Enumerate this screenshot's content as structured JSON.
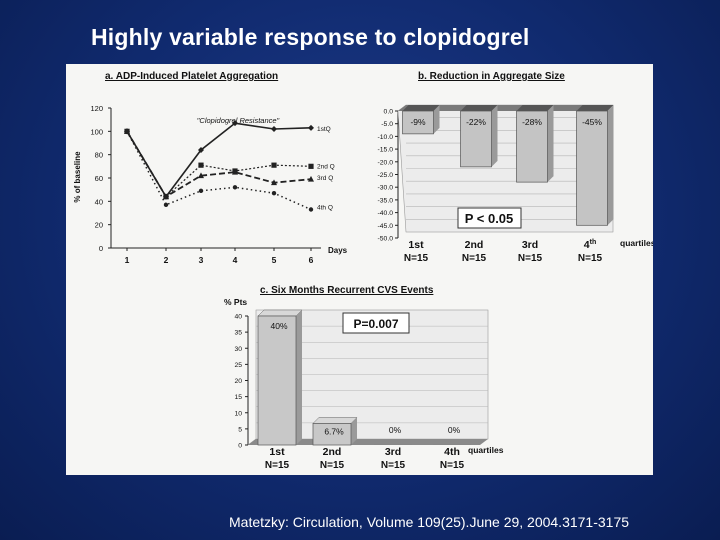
{
  "slide": {
    "title": "Highly variable response to clopidogrel",
    "citation": "Matetzky: Circulation, Volume 109(25).June 29, 2004.3171-3175"
  },
  "chart_data": [
    {
      "id": "a",
      "type": "line",
      "title": "a. ADP-Induced Platelet Aggregation",
      "ylabel": "% of baseline",
      "xlabel": "Days",
      "x": [
        1,
        2,
        3,
        4,
        5,
        6
      ],
      "xticks": [
        "1",
        "2",
        "3",
        "4",
        "5",
        "6"
      ],
      "ylim": [
        0,
        120
      ],
      "yticks": [
        0,
        20,
        40,
        60,
        80,
        100,
        120
      ],
      "annotation": "\"Clopidogrel Resistance\"",
      "series": [
        {
          "name": "1stQ",
          "values": [
            100,
            44,
            84,
            107,
            102,
            103
          ],
          "marker": "diamond"
        },
        {
          "name": "2nd Q",
          "values": [
            100,
            44,
            71,
            66,
            71,
            70
          ],
          "marker": "square"
        },
        {
          "name": "3rd Q",
          "values": [
            100,
            44,
            62,
            65,
            56,
            59
          ],
          "marker": "triangle"
        },
        {
          "name": "4th Q",
          "values": [
            100,
            37,
            49,
            52,
            47,
            33
          ],
          "marker": "circle"
        }
      ]
    },
    {
      "id": "b",
      "type": "bar",
      "title": "b. Reduction in Aggregate Size",
      "categories": [
        "1st",
        "2nd",
        "3rd",
        "4th"
      ],
      "sublabels": [
        "N=15",
        "N=15",
        "N=15",
        "N=15"
      ],
      "values": [
        -9,
        -22,
        -28,
        -45
      ],
      "labels": [
        "-9%",
        "-22%",
        "-28%",
        "-45%"
      ],
      "ylim": [
        -50,
        0
      ],
      "yticks": [
        0,
        -5,
        -10,
        -15,
        -20,
        -25,
        -30,
        -35,
        -40,
        -45,
        -50
      ],
      "xlabel": "quartiles",
      "annotation": "P < 0.05"
    },
    {
      "id": "c",
      "type": "bar",
      "title": "c. Six Months Recurrent CVS Events",
      "ylabel": "% Pts",
      "categories": [
        "1st",
        "2nd",
        "3rd",
        "4th"
      ],
      "sublabels": [
        "N=15",
        "N=15",
        "N=15",
        "N=15"
      ],
      "values": [
        40,
        6.7,
        0,
        0
      ],
      "labels": [
        "40%",
        "6.7%",
        "0%",
        "0%"
      ],
      "ylim": [
        0,
        40
      ],
      "yticks": [
        0,
        5,
        10,
        15,
        20,
        25,
        30,
        35,
        40
      ],
      "xlabel": "quartiles",
      "annotation": "P=0.007"
    }
  ]
}
